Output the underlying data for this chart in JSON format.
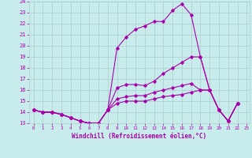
{
  "xlabel": "Windchill (Refroidissement éolien,°C)",
  "bg_color": "#c8ecec",
  "grid_color": "#aacccc",
  "line_color": "#aa00aa",
  "xmin": 0,
  "xmax": 23,
  "ymin": 13,
  "ymax": 24,
  "series": [
    [
      14.2,
      14.0,
      14.0,
      13.8,
      13.5,
      13.2,
      13.0,
      13.0,
      14.2,
      19.8,
      20.8,
      21.5,
      21.8,
      22.2,
      22.2,
      23.2,
      23.8,
      22.8,
      19.0,
      16.0,
      14.2,
      13.2,
      14.8
    ],
    [
      14.2,
      14.0,
      14.0,
      13.8,
      13.5,
      13.2,
      13.0,
      13.0,
      14.2,
      16.2,
      16.5,
      16.5,
      16.4,
      16.8,
      17.5,
      18.0,
      18.5,
      19.0,
      19.0,
      16.0,
      14.2,
      13.2,
      14.8
    ],
    [
      14.2,
      14.0,
      14.0,
      13.8,
      13.5,
      13.2,
      13.0,
      13.0,
      14.2,
      15.2,
      15.4,
      15.5,
      15.5,
      15.8,
      16.0,
      16.2,
      16.4,
      16.6,
      16.0,
      16.0,
      14.2,
      13.2,
      14.8
    ],
    [
      14.2,
      14.0,
      14.0,
      13.8,
      13.5,
      13.2,
      13.0,
      13.0,
      14.2,
      14.8,
      15.0,
      15.0,
      15.0,
      15.2,
      15.4,
      15.5,
      15.6,
      15.8,
      16.0,
      16.0,
      14.2,
      13.2,
      14.8
    ]
  ]
}
